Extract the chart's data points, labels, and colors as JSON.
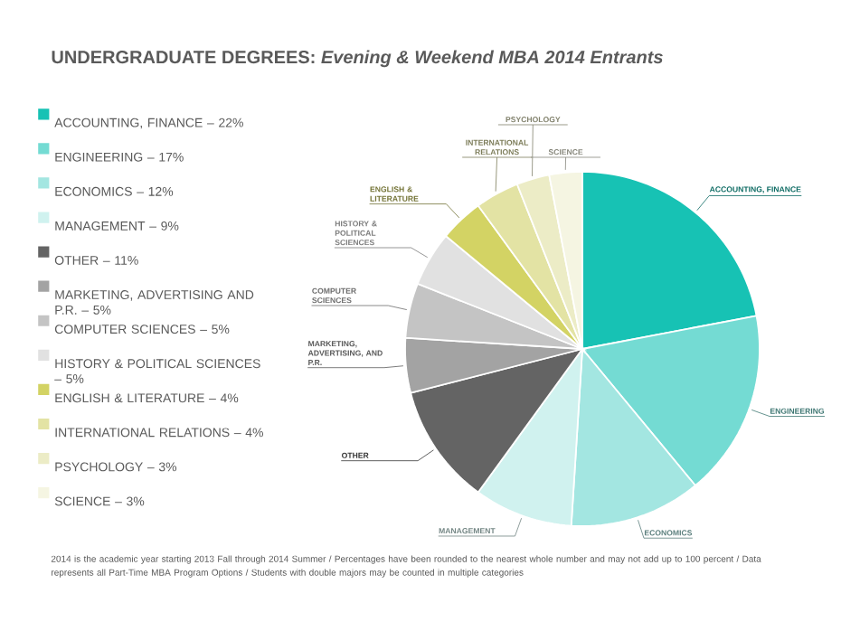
{
  "chart_data": {
    "type": "pie",
    "title": "UNDERGRADUATE DEGREES: *Evening & Weekend MBA 2014 Entrants*",
    "categories": [
      "ACCOUNTING, FINANCE – 22%",
      "ENGINEERING – 17%",
      "ECONOMICS – 12%",
      "MANAGEMENT – 9%",
      "OTHER – 11%",
      "MARKETING, ADVERTISING AND P.R. – 5%",
      "COMPUTER SCIENCES – 5%",
      "HISTORY & POLITICAL SCIENCES – 5%",
      "ENGLISH & LITERATURE – 4%",
      "INTERNATIONAL RELATIONS – 4%",
      "PSYCHOLOGY – 3%",
      "SCIENCE – 3%"
    ],
    "values": [
      22,
      17,
      12,
      9,
      11,
      5,
      5,
      5,
      4,
      4,
      3,
      3
    ],
    "colors": [
      "#17c2b4",
      "#74dbd3",
      "#a3e6e1",
      "#d0f2ef",
      "#646464",
      "#a3a3a3",
      "#c4c4c4",
      "#e1e1e1",
      "#d3d364",
      "#e3e3a4",
      "#ececc6",
      "#f5f5e2"
    ],
    "legend": "left",
    "annotations": [
      "ACCOUNTING, FINANCE",
      "ENGINEERING",
      "ECONOMICS",
      "MANAGEMENT",
      "OTHER",
      "MARKETING, ADVERTISING, AND P.R.",
      "COMPUTER SCIENCES",
      "HISTORY & POLITICAL SCIENCES",
      "ENGLISH & LITERATURE",
      "INTERNATIONAL RELATIONS",
      "PSYCHOLOGY",
      "SCIENCE",
      "2014 is the academic year starting 2013 Fall through 2014 Summer / Percentages have been rounded to the nearest whole number and may not add up to 100 percent / Data represents all Part-Time MBA Program Options / Students with double majors may be counted in multiple categories"
    ]
  }
}
